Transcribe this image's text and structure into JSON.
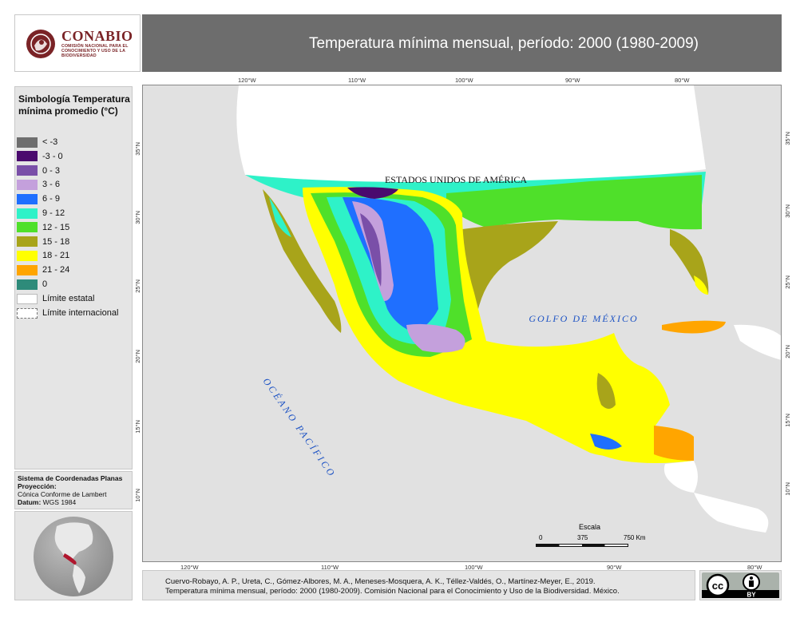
{
  "logo": {
    "name": "CONABIO",
    "subtitle": "COMISIÓN NACIONAL PARA EL CONOCIMIENTO Y USO DE LA BIODIVERSIDAD"
  },
  "title": "Temperatura mínima mensual, período: 2000 (1980-2009)",
  "legend": {
    "title": "Simbología Temperatura mínima promedio (°C)",
    "items": [
      {
        "label": "< -3",
        "color": "#6e6e6e"
      },
      {
        "label": "-3 - 0",
        "color": "#4a0a6e"
      },
      {
        "label": "0 - 3",
        "color": "#7a4fa8"
      },
      {
        "label": "3 - 6",
        "color": "#c4a0dc"
      },
      {
        "label": "6 - 9",
        "color": "#1f6fff"
      },
      {
        "label": "9 - 12",
        "color": "#2ef2c8"
      },
      {
        "label": "12 - 15",
        "color": "#4fe02a"
      },
      {
        "label": "15 - 18",
        "color": "#a8a41a"
      },
      {
        "label": "18 - 21",
        "color": "#ffff00"
      },
      {
        "label": "21 - 24",
        "color": "#ffa500"
      },
      {
        "label": "0",
        "color": "#2e8b7a"
      }
    ],
    "limit_state": "Límite estatal",
    "limit_international": "Límite internacional"
  },
  "coordinates": {
    "system": "Sistema de Coordenadas Planas",
    "projection_label": "Proyección:",
    "projection": "Cónica Conforme de Lambert",
    "datum_label": "Datum:",
    "datum": "WGS 1984"
  },
  "map": {
    "labels": {
      "usa": "ESTADOS UNIDOS DE AMÉRICA",
      "gulf": "GOLFO DE MÉXICO",
      "pacific": "OCÉANO PACÍFICO"
    },
    "top_ticks": [
      "120°W",
      "110°W",
      "100°W",
      "90°W",
      "80°W"
    ],
    "bottom_ticks": [
      "120°W",
      "110°W",
      "100°W",
      "90°W",
      "80°W"
    ],
    "left_ticks": [
      "35°N",
      "30°N",
      "25°N",
      "20°N",
      "15°N",
      "10°N"
    ],
    "right_ticks": [
      "35°N",
      "30°N",
      "25°N",
      "20°N",
      "15°N",
      "10°N"
    ],
    "scale": {
      "title": "Escala",
      "marks": [
        "0",
        "375",
        "750 Km"
      ]
    },
    "colors": {
      "ocean": "#e1e1e1",
      "land_other": "#ffffff"
    }
  },
  "citation": {
    "line1": "Cuervo-Robayo, A. P., Ureta, C., Gómez-Albores, M. A., Meneses-Mosquera, A. K., Téllez-Valdés,  O., Martínez-Meyer, E., 2019.",
    "line2": "Temperatura mínima mensual, período: 2000 (1980-2009). Comisión Nacional para el Conocimiento y Uso de la Biodiversidad. México."
  },
  "license": {
    "cc": "cc",
    "by": "BY"
  }
}
